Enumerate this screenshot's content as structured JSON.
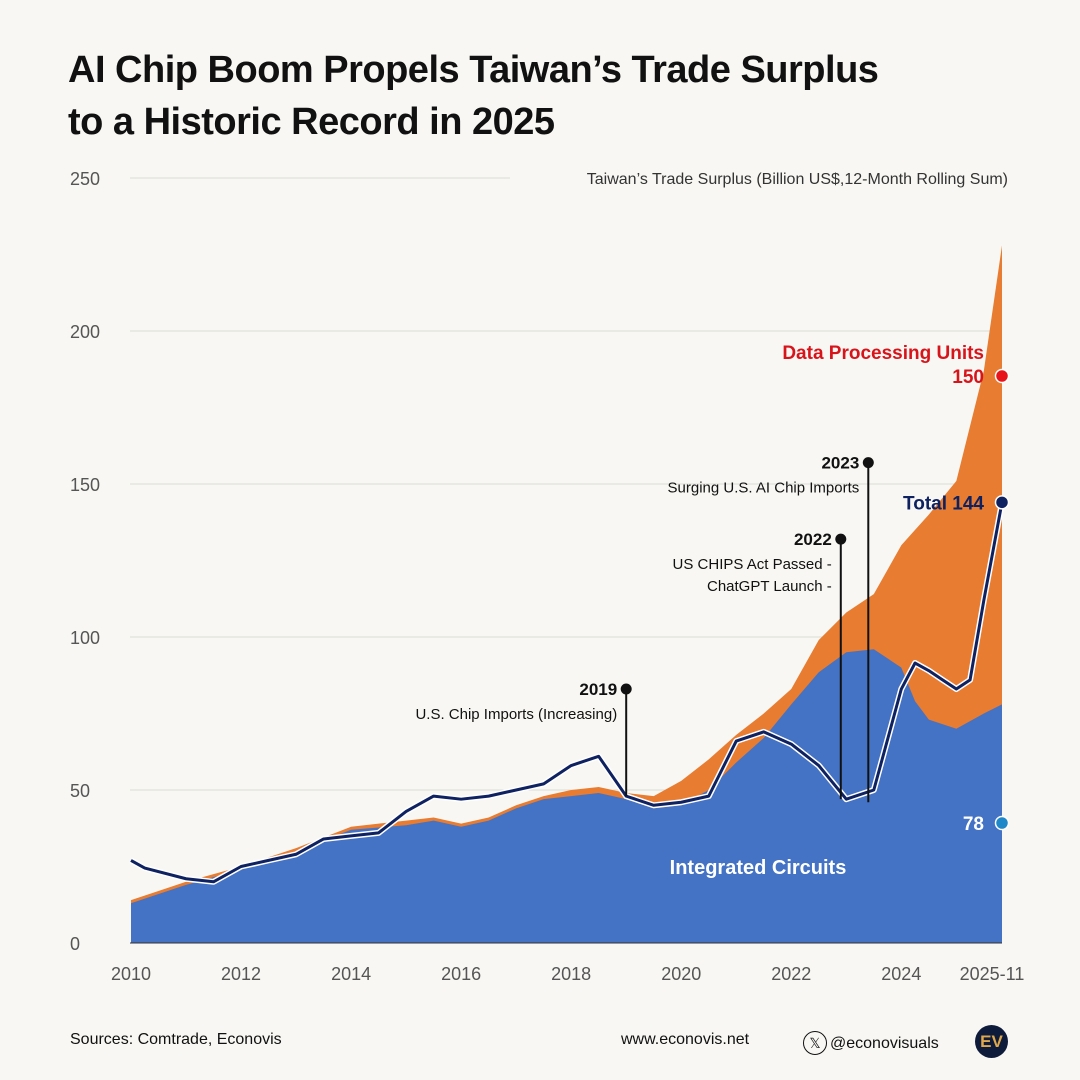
{
  "title_line1": "AI Chip Boom Propels Taiwan’s Trade Surplus",
  "title_line2": "to a Historic Record in 2025",
  "chart_data": {
    "type": "area",
    "subtitle": "Taiwan’s Trade Surplus (Billion US$,12-Month Rolling Sum)",
    "ylim": [
      0,
      250
    ],
    "yticks": [
      0,
      50,
      100,
      150,
      200,
      250
    ],
    "xlim": [
      2010,
      2025.83
    ],
    "xticks": [
      {
        "value": 2010,
        "label": "2010"
      },
      {
        "value": 2012,
        "label": "2012"
      },
      {
        "value": 2014,
        "label": "2014"
      },
      {
        "value": 2016,
        "label": "2016"
      },
      {
        "value": 2018,
        "label": "2018"
      },
      {
        "value": 2020,
        "label": "2020"
      },
      {
        "value": 2022,
        "label": "2022"
      },
      {
        "value": 2024,
        "label": "2024"
      },
      {
        "value": 2025.83,
        "label": "2025-11"
      }
    ],
    "grid": true,
    "series": [
      {
        "name": "Integrated Circuits",
        "kind": "area",
        "color": "#4472c4",
        "x": [
          2010,
          2011,
          2012,
          2013,
          2014,
          2015,
          2015.5,
          2016,
          2016.5,
          2017,
          2017.5,
          2018,
          2018.5,
          2019,
          2019.5,
          2020,
          2020.5,
          2021,
          2021.5,
          2022,
          2022.5,
          2023,
          2023.5,
          2024,
          2024.25,
          2024.5,
          2025,
          2025.5,
          2025.83
        ],
        "y": [
          13,
          19,
          24,
          30,
          37,
          38.5,
          40,
          38,
          40,
          44,
          47,
          48,
          49,
          47,
          44,
          45,
          50,
          59,
          67,
          78,
          88.5,
          95,
          96,
          90,
          79,
          73,
          70,
          75,
          78
        ]
      },
      {
        "name": "Data Processing Units",
        "kind": "stacked-area",
        "color": "#e87c30",
        "x": [
          2010,
          2011,
          2012,
          2013,
          2014,
          2015,
          2015.5,
          2016,
          2016.5,
          2017,
          2017.5,
          2018,
          2018.5,
          2019,
          2019.5,
          2020,
          2020.5,
          2021,
          2021.5,
          2022,
          2022.5,
          2023,
          2023.5,
          2024,
          2024.25,
          2024.5,
          2025,
          2025.5,
          2025.83
        ],
        "y_stacked_top": [
          14,
          20,
          25,
          31,
          38,
          40,
          41,
          39,
          41,
          45,
          48,
          50,
          51,
          49,
          48,
          53,
          60,
          68,
          75,
          83,
          99,
          108,
          114,
          130,
          135,
          140,
          151,
          187,
          228
        ]
      },
      {
        "name": "Total",
        "kind": "line",
        "color": "#0e2160",
        "x": [
          2010,
          2010.25,
          2011,
          2011.5,
          2012,
          2012.5,
          2013,
          2013.5,
          2014,
          2014.5,
          2015,
          2015.5,
          2016,
          2016.5,
          2017,
          2017.5,
          2018,
          2018.5,
          2019,
          2019.5,
          2020,
          2020.5,
          2021,
          2021.5,
          2022,
          2022.5,
          2023,
          2023.5,
          2024,
          2024.25,
          2024.5,
          2024.75,
          2025,
          2025.25,
          2025.5,
          2025.83
        ],
        "y": [
          27,
          24.5,
          21,
          20,
          25,
          27,
          29,
          34,
          35,
          36,
          43,
          48,
          47,
          48,
          50,
          52,
          58,
          61,
          48,
          45,
          46,
          48,
          66,
          69,
          65,
          58,
          47,
          50,
          83,
          91.5,
          89,
          86,
          83,
          86,
          112,
          144
        ]
      }
    ],
    "series_labels": {
      "ic": "Integrated Circuits",
      "dpu": "Data Processing Units",
      "dpu_value": "150",
      "total": "Total 144",
      "ic_value": "78"
    },
    "annotations": [
      {
        "x": 2019,
        "y": 83,
        "year": "2019",
        "lines": [
          "U.S. Chip Imports (Increasing)"
        ]
      },
      {
        "x": 2022.9,
        "y": 132,
        "year": "2022",
        "lines": [
          "US CHIPS Act Passed -",
          "ChatGPT Launch -"
        ]
      },
      {
        "x": 2023.4,
        "y": 157,
        "year": "2023",
        "lines": [
          "Surging U.S. AI Chip Imports"
        ]
      }
    ]
  },
  "footer": {
    "sources": "Sources: Comtrade, Econovis",
    "website": "www.econovis.net",
    "handle": "@econovisuals",
    "logo": "EV"
  }
}
